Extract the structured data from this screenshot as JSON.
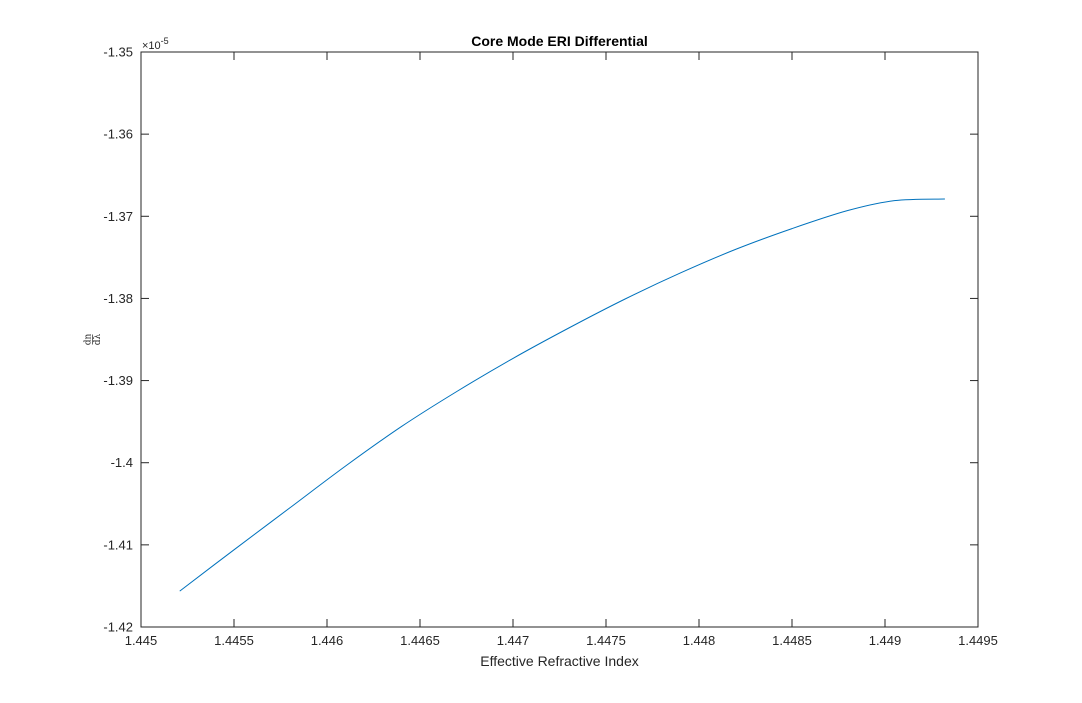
{
  "chart_data": {
    "type": "line",
    "title": "Core Mode ERI Differential",
    "xlabel": "Effective Refractive Index",
    "ylabel_num": "dn",
    "ylabel_den": "dλ",
    "y_exponent_prefix": "×10",
    "y_exponent_power": "-5",
    "y_multiplier": 1e-05,
    "xlim": [
      1.445,
      1.4495
    ],
    "ylim": [
      -1.42,
      -1.35
    ],
    "x_ticks": [
      1.445,
      1.4455,
      1.446,
      1.4465,
      1.447,
      1.4475,
      1.448,
      1.4485,
      1.449,
      1.4495
    ],
    "x_tick_labels": [
      "1.445",
      "1.4455",
      "1.446",
      "1.4465",
      "1.447",
      "1.4475",
      "1.448",
      "1.4485",
      "1.449",
      "1.4495"
    ],
    "y_ticks": [
      -1.42,
      -1.41,
      -1.4,
      -1.39,
      -1.38,
      -1.37,
      -1.36,
      -1.35
    ],
    "y_tick_labels": [
      "-1.42",
      "-1.41",
      "-1.4",
      "-1.39",
      "-1.38",
      "-1.37",
      "-1.36",
      "-1.35"
    ],
    "grid": false,
    "series": [
      {
        "color": "#0072BD",
        "x": [
          1.44521,
          1.4455,
          1.4458,
          1.4461,
          1.4464,
          1.4467,
          1.447,
          1.4473,
          1.4476,
          1.4479,
          1.4482,
          1.4485,
          1.4488,
          1.44905,
          1.44932
        ],
        "y": [
          -1.4156,
          -1.4106,
          -1.4055,
          -1.4004,
          -1.3956,
          -1.3913,
          -1.3873,
          -1.3836,
          -1.3801,
          -1.3769,
          -1.374,
          -1.3715,
          -1.3693,
          -1.3681,
          -1.3679
        ]
      }
    ]
  }
}
